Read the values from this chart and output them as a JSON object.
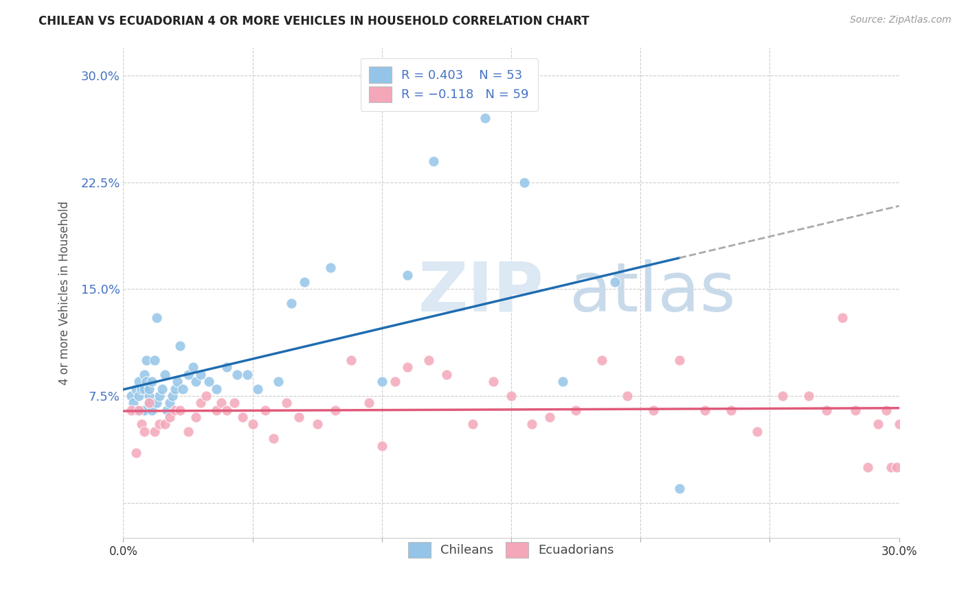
{
  "title": "CHILEAN VS ECUADORIAN 4 OR MORE VEHICLES IN HOUSEHOLD CORRELATION CHART",
  "source": "Source: ZipAtlas.com",
  "ylabel": "4 or more Vehicles in Household",
  "xlim": [
    0.0,
    0.3
  ],
  "ylim": [
    -0.025,
    0.32
  ],
  "chilean_color": "#94c5e8",
  "ecuadorian_color": "#f4a7b9",
  "chilean_line_color": "#1f6cb0",
  "ecuadorian_line_color": "#e05a7a",
  "legend_text_color": "#4472c4",
  "ytick_color": "#4472c4",
  "watermark_zip_color": "#dce8f3",
  "watermark_atlas_color": "#c8daea",
  "chilean_x": [
    0.003,
    0.004,
    0.005,
    0.005,
    0.006,
    0.006,
    0.007,
    0.007,
    0.008,
    0.008,
    0.008,
    0.009,
    0.009,
    0.01,
    0.01,
    0.01,
    0.011,
    0.011,
    0.012,
    0.013,
    0.013,
    0.014,
    0.015,
    0.016,
    0.017,
    0.018,
    0.019,
    0.02,
    0.021,
    0.022,
    0.023,
    0.025,
    0.027,
    0.028,
    0.03,
    0.033,
    0.036,
    0.04,
    0.044,
    0.048,
    0.052,
    0.06,
    0.065,
    0.07,
    0.08,
    0.1,
    0.11,
    0.12,
    0.14,
    0.155,
    0.17,
    0.19,
    0.215
  ],
  "chilean_y": [
    0.075,
    0.07,
    0.08,
    0.065,
    0.075,
    0.085,
    0.065,
    0.08,
    0.09,
    0.065,
    0.08,
    0.085,
    0.1,
    0.07,
    0.075,
    0.08,
    0.085,
    0.065,
    0.1,
    0.07,
    0.13,
    0.075,
    0.08,
    0.09,
    0.065,
    0.07,
    0.075,
    0.08,
    0.085,
    0.11,
    0.08,
    0.09,
    0.095,
    0.085,
    0.09,
    0.085,
    0.08,
    0.095,
    0.09,
    0.09,
    0.08,
    0.085,
    0.14,
    0.155,
    0.165,
    0.085,
    0.16,
    0.24,
    0.27,
    0.225,
    0.085,
    0.155,
    0.01
  ],
  "ecuadorian_x": [
    0.003,
    0.005,
    0.006,
    0.007,
    0.008,
    0.01,
    0.012,
    0.014,
    0.016,
    0.018,
    0.02,
    0.022,
    0.025,
    0.028,
    0.03,
    0.032,
    0.036,
    0.038,
    0.04,
    0.043,
    0.046,
    0.05,
    0.055,
    0.058,
    0.063,
    0.068,
    0.075,
    0.082,
    0.088,
    0.095,
    0.1,
    0.105,
    0.11,
    0.118,
    0.125,
    0.135,
    0.143,
    0.15,
    0.158,
    0.165,
    0.175,
    0.185,
    0.195,
    0.205,
    0.215,
    0.225,
    0.235,
    0.245,
    0.255,
    0.265,
    0.272,
    0.278,
    0.283,
    0.288,
    0.292,
    0.295,
    0.297,
    0.299,
    0.3
  ],
  "ecuadorian_y": [
    0.065,
    0.035,
    0.065,
    0.055,
    0.05,
    0.07,
    0.05,
    0.055,
    0.055,
    0.06,
    0.065,
    0.065,
    0.05,
    0.06,
    0.07,
    0.075,
    0.065,
    0.07,
    0.065,
    0.07,
    0.06,
    0.055,
    0.065,
    0.045,
    0.07,
    0.06,
    0.055,
    0.065,
    0.1,
    0.07,
    0.04,
    0.085,
    0.095,
    0.1,
    0.09,
    0.055,
    0.085,
    0.075,
    0.055,
    0.06,
    0.065,
    0.1,
    0.075,
    0.065,
    0.1,
    0.065,
    0.065,
    0.05,
    0.075,
    0.075,
    0.065,
    0.13,
    0.065,
    0.025,
    0.055,
    0.065,
    0.025,
    0.025,
    0.055
  ],
  "yticks": [
    0.0,
    0.075,
    0.15,
    0.225,
    0.3
  ],
  "ytick_labels": [
    "",
    "7.5%",
    "15.0%",
    "22.5%",
    "30.0%"
  ],
  "xtick_positions": [
    0.0,
    0.05,
    0.1,
    0.15,
    0.2,
    0.25,
    0.3
  ],
  "xtick_labels": [
    "0.0%",
    "",
    "",
    "",
    "",
    "",
    "30.0%"
  ]
}
